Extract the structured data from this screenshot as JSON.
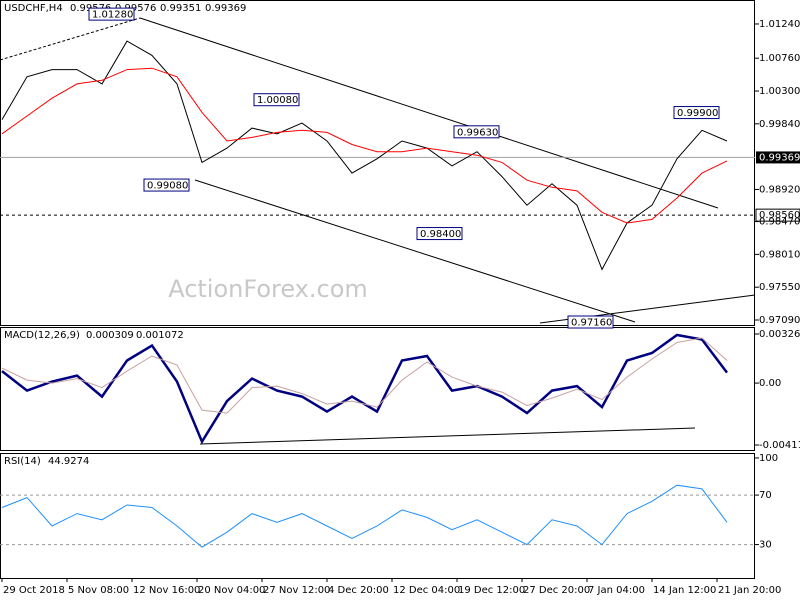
{
  "chart_data": [
    {
      "type": "line",
      "title": "USDCHF,H4",
      "ohlc": [
        0.99576,
        0.99576,
        0.99351,
        0.99369
      ],
      "watermark": "ActionForex.com",
      "x": [
        0,
        5,
        10,
        15,
        20,
        25,
        30,
        35,
        40,
        45,
        50,
        55,
        60,
        65,
        70,
        75,
        80,
        85,
        90,
        95,
        100,
        105,
        110,
        115,
        120,
        125,
        130,
        135,
        140,
        145
      ],
      "xlim": [
        0,
        150.6
      ],
      "ylim": [
        0.9702,
        1.01576
      ],
      "yticks": [
        {
          "value": 1.0124,
          "label": "1.01240"
        },
        {
          "value": 1.0076,
          "label": "1.00760"
        },
        {
          "value": 1.003,
          "label": "1.00300"
        },
        {
          "value": 0.9984,
          "label": "0.99840"
        },
        {
          "value": 0.9892,
          "label": "0.98920"
        },
        {
          "value": 0.9847,
          "label": "0.98470"
        },
        {
          "value": 0.9801,
          "label": "0.98010"
        },
        {
          "value": 0.9755,
          "label": "0.97550"
        },
        {
          "value": 0.9709,
          "label": "0.97090"
        }
      ],
      "series": [
        {
          "name": "Price",
          "color": "#000000",
          "width": 1,
          "values": [
            0.999,
            1.005,
            1.006,
            1.006,
            1.004,
            1.01,
            1.008,
            1.004,
            0.993,
            0.995,
            0.9978,
            0.997,
            0.9985,
            0.996,
            0.9915,
            0.9935,
            0.996,
            0.995,
            0.9925,
            0.9945,
            0.991,
            0.987,
            0.99,
            0.987,
            0.978,
            0.9845,
            0.987,
            0.9935,
            0.9975,
            0.996
          ]
        },
        {
          "name": "MA",
          "color": "#ff0000",
          "width": 1,
          "values": [
            0.997,
            0.9995,
            1.002,
            1.004,
            1.0045,
            1.006,
            1.0062,
            1.005,
            1.0,
            0.996,
            0.9965,
            0.9972,
            0.9975,
            0.9972,
            0.9955,
            0.9945,
            0.9945,
            0.995,
            0.9945,
            0.994,
            0.993,
            0.9905,
            0.9895,
            0.989,
            0.986,
            0.9845,
            0.985,
            0.988,
            0.9915,
            0.9932
          ]
        }
      ],
      "levels": [
        {
          "value": 0.9856,
          "label": "0.98560"
        }
      ],
      "last": {
        "value": 0.99369,
        "label": "0.99369"
      },
      "annotations": [
        {
          "text": "1.01280",
          "value": 1.0128,
          "x": 26.6,
          "side": "high"
        },
        {
          "text": "1.00080",
          "value": 1.0008,
          "x": 59.6,
          "side": "high"
        },
        {
          "text": "0.99630",
          "value": 0.9963,
          "x": 99.6,
          "side": "high"
        },
        {
          "text": "0.99900",
          "value": 0.999,
          "x": 143.6,
          "side": "high"
        },
        {
          "text": "0.99080",
          "value": 0.9908,
          "x": 37.6,
          "side": "low"
        },
        {
          "text": "0.98400",
          "value": 0.984,
          "x": 92.2,
          "side": "low"
        },
        {
          "text": "0.97160",
          "value": 0.9716,
          "x": 122.4,
          "side": "low"
        }
      ]
    },
    {
      "type": "line",
      "title": "MACD(12,26,9)",
      "readouts": [
        0.000309,
        0.001072
      ],
      "x": [
        0,
        5,
        10,
        15,
        20,
        25,
        30,
        35,
        40,
        45,
        50,
        55,
        60,
        65,
        70,
        75,
        80,
        85,
        90,
        95,
        100,
        105,
        110,
        115,
        120,
        125,
        130,
        135,
        140,
        145
      ],
      "xlim": [
        0,
        150.6
      ],
      "ylim": [
        -0.004452,
        0.003731
      ],
      "yticks": [
        0.003265,
        {
          "value": 0,
          "label": "0.00"
        },
        -0.004119
      ],
      "series": [
        {
          "name": "MACD",
          "color": "#000080",
          "width": 2.5,
          "values": [
            0.0008,
            -0.0005,
            0.0001,
            0.0005,
            -0.0009,
            0.0015,
            0.0025,
            0.0001,
            -0.0039,
            -0.0012,
            0.0003,
            -0.0005,
            -0.0009,
            -0.0019,
            -0.0009,
            -0.0019,
            0.0015,
            0.0018,
            -0.0005,
            -0.0002,
            -0.0009,
            -0.002,
            -0.0005,
            -0.0002,
            -0.0016,
            0.0015,
            0.002,
            0.0032,
            0.0029,
            0.0007
          ]
        },
        {
          "name": "Signal",
          "color": "#c8a0a0",
          "width": 1,
          "values": [
            0.001,
            0.0002,
            0,
            0.0003,
            -0.0003,
            0.0008,
            0.0018,
            0.0012,
            -0.0018,
            -0.002,
            -0.0003,
            -0.0002,
            -0.0007,
            -0.0014,
            -0.0012,
            -0.0016,
            0.0002,
            0.0014,
            0.0004,
            -0.0002,
            -0.0006,
            -0.0015,
            -0.001,
            -0.0004,
            -0.0011,
            0.0004,
            0.0016,
            0.0027,
            0.003,
            0.0015
          ]
        }
      ]
    },
    {
      "type": "line",
      "title": "RSI(14)",
      "readouts": [
        44.9274
      ],
      "x": [
        0,
        5,
        10,
        15,
        20,
        25,
        30,
        35,
        40,
        45,
        50,
        55,
        60,
        65,
        70,
        75,
        80,
        85,
        90,
        95,
        100,
        105,
        110,
        115,
        120,
        125,
        130,
        135,
        140,
        145
      ],
      "xlim": [
        0,
        150.6
      ],
      "ylim": [
        3,
        104
      ],
      "yticks": [
        100,
        70,
        30
      ],
      "levels": [
        70,
        30
      ],
      "xticks": [
        {
          "value": 0,
          "label": "29 Oct 2018"
        },
        {
          "value": 13,
          "label": "5 Nov 08:00"
        },
        {
          "value": 26,
          "label": "12 Nov 16:00"
        },
        {
          "value": 39,
          "label": "20 Nov 04:00"
        },
        {
          "value": 52,
          "label": "27 Nov 12:00"
        },
        {
          "value": 65,
          "label": "4 Dec 20:00"
        },
        {
          "value": 78,
          "label": "12 Dec 04:00"
        },
        {
          "value": 91,
          "label": "19 Dec 12:00"
        },
        {
          "value": 104,
          "label": "27 Dec 20:00"
        },
        {
          "value": 117,
          "label": "7 Jan 04:00"
        },
        {
          "value": 130,
          "label": "14 Jan 12:00"
        },
        {
          "value": 143,
          "label": "21 Jan 20:00"
        }
      ],
      "series": [
        {
          "name": "RSI",
          "color": "#1e90ff",
          "width": 1,
          "values": [
            60,
            68,
            45,
            55,
            50,
            62,
            60,
            45,
            28,
            40,
            55,
            48,
            55,
            45,
            35,
            45,
            58,
            52,
            42,
            50,
            40,
            30,
            50,
            45,
            30,
            55,
            65,
            78,
            75,
            48
          ]
        }
      ]
    }
  ]
}
